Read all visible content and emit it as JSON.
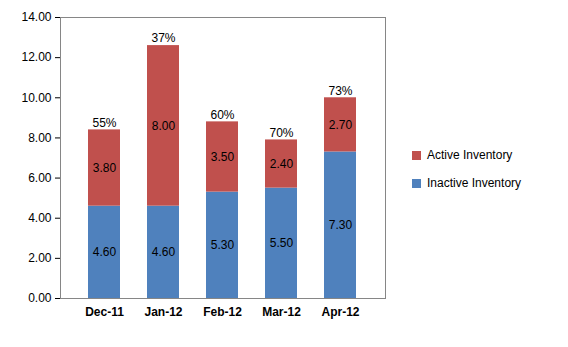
{
  "chart_data": {
    "type": "bar",
    "stacked": true,
    "data_labels": true,
    "grid": false,
    "legend": "right",
    "categories": [
      "Dec-11",
      "Jan-12",
      "Feb-12",
      "Mar-12",
      "Apr-12"
    ],
    "series": [
      {
        "name": "Inactive Inventory",
        "color": "#4f81bd",
        "values": [
          4.6,
          4.6,
          5.3,
          5.5,
          7.3
        ],
        "value_labels": [
          "4.60",
          "4.60",
          "5.30",
          "5.50",
          "7.30"
        ]
      },
      {
        "name": "Active Inventory",
        "color": "#c0504d",
        "values": [
          3.8,
          8.0,
          3.5,
          2.4,
          2.7
        ],
        "value_labels": [
          "3.80",
          "8.00",
          "3.50",
          "2.40",
          "2.70"
        ]
      }
    ],
    "annotations": [
      {
        "category": "Dec-11",
        "text": "55%"
      },
      {
        "category": "Jan-12",
        "text": "37%"
      },
      {
        "category": "Feb-12",
        "text": "60%"
      },
      {
        "category": "Mar-12",
        "text": "70%"
      },
      {
        "category": "Apr-12",
        "text": "73%"
      }
    ],
    "ylim": [
      0,
      14
    ],
    "yticks": [
      {
        "value": 0,
        "label": "0.00"
      },
      {
        "value": 2,
        "label": "2.00"
      },
      {
        "value": 4,
        "label": "4.00"
      },
      {
        "value": 6,
        "label": "6.00"
      },
      {
        "value": 8,
        "label": "8.00"
      },
      {
        "value": 10,
        "label": "10.00"
      },
      {
        "value": 12,
        "label": "12.00"
      },
      {
        "value": 14,
        "label": "14.00"
      }
    ]
  }
}
